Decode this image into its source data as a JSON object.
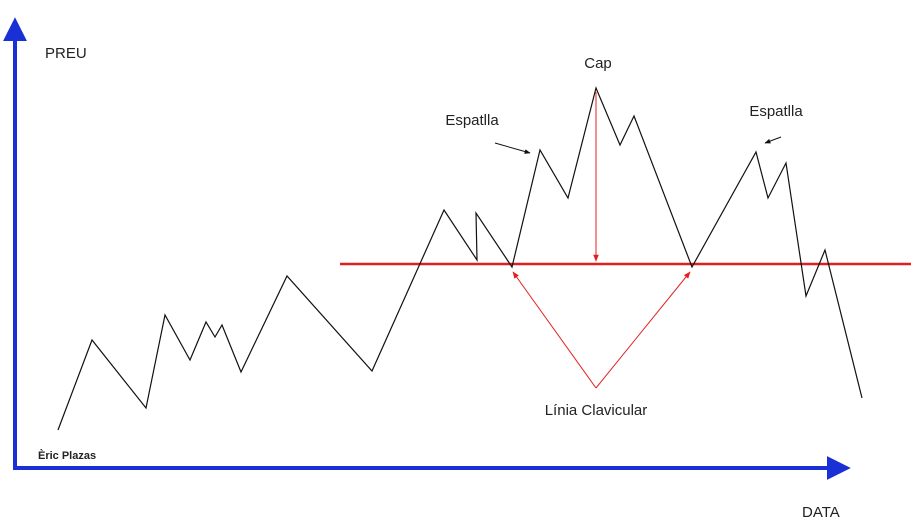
{
  "axes": {
    "y_label": "PREU",
    "x_label": "DATA"
  },
  "annotations": {
    "head": "Cap",
    "left_shoulder": "Espatlla",
    "right_shoulder": "Espatlla",
    "neckline": "Línia Clavicular"
  },
  "author": "Èric Plazas"
}
